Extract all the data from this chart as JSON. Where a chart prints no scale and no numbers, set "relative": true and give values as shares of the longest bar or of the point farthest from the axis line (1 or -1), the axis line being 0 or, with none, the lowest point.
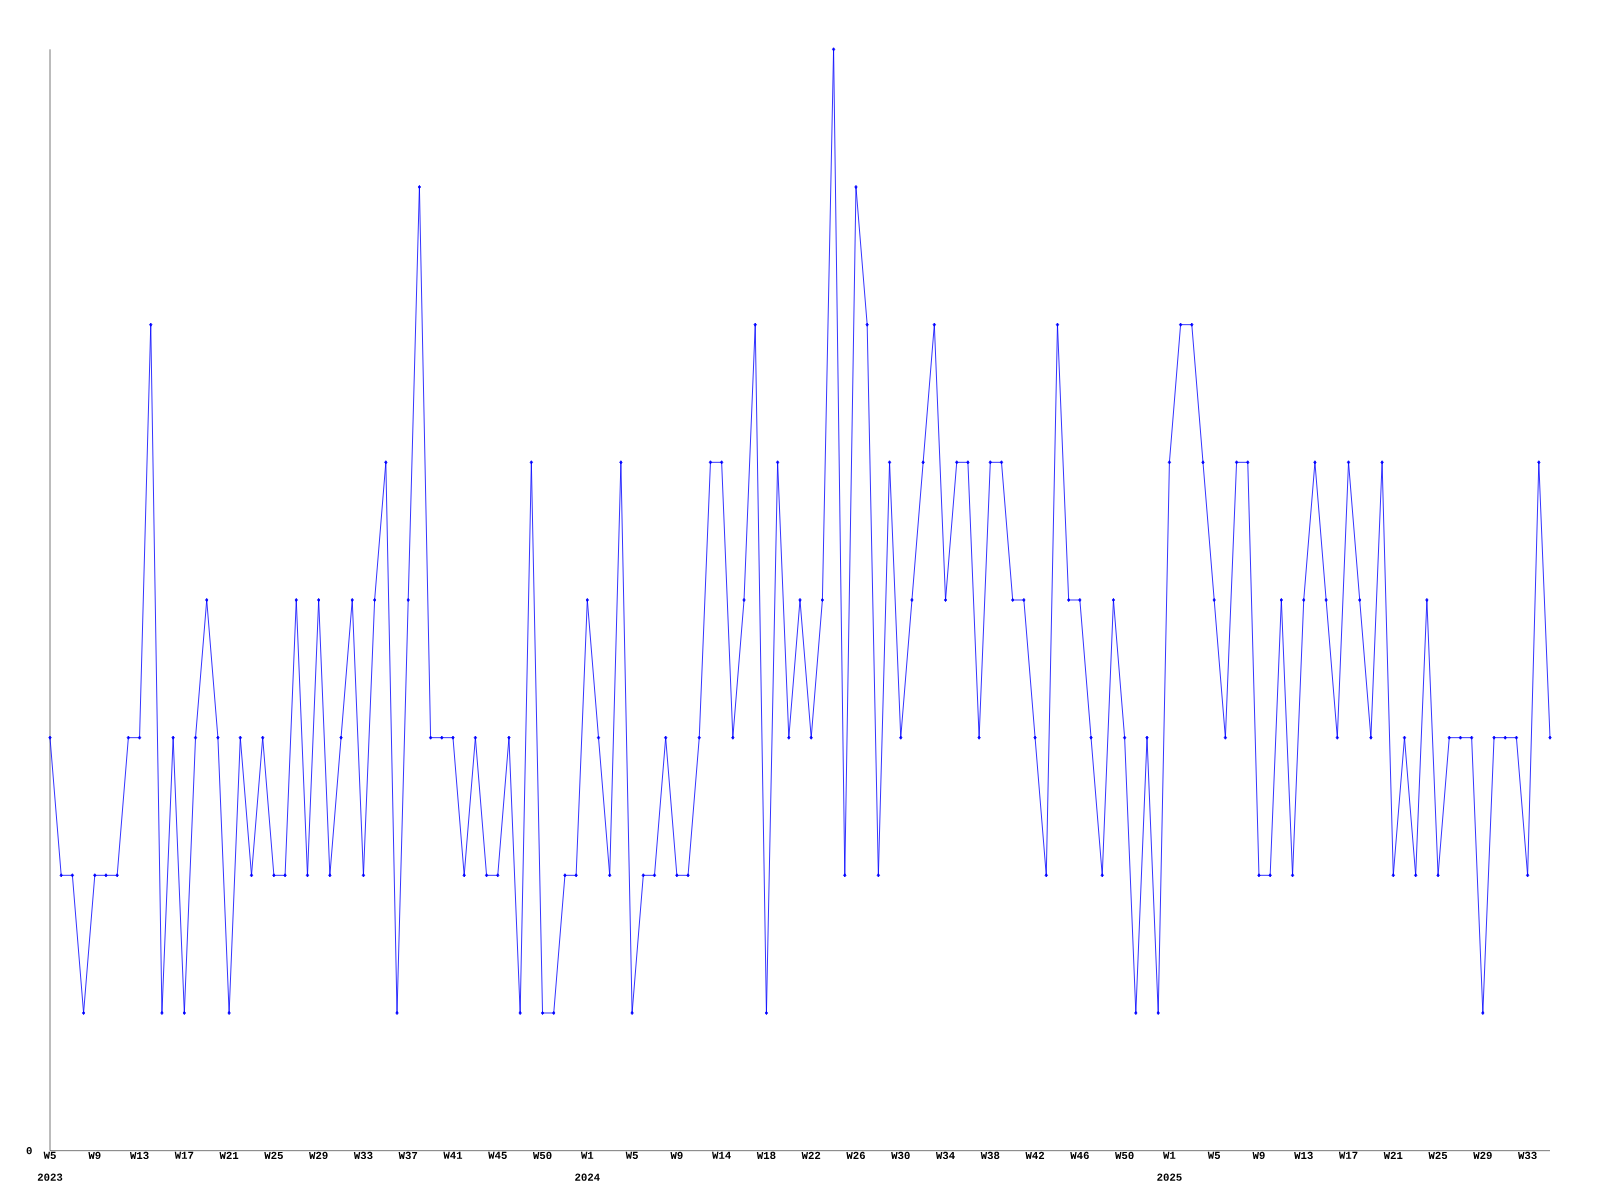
{
  "chart_data": {
    "type": "line",
    "relative": true,
    "color": "#0000ff",
    "marker": "diamond",
    "grid": false,
    "categories": [
      "W5",
      null,
      null,
      null,
      "W9",
      null,
      null,
      null,
      "W13",
      null,
      null,
      null,
      "W17",
      null,
      null,
      null,
      "W21",
      null,
      null,
      null,
      "W25",
      null,
      null,
      null,
      "W29",
      null,
      null,
      null,
      "W33",
      null,
      null,
      null,
      "W37",
      null,
      null,
      null,
      "W41",
      null,
      null,
      null,
      "W45",
      null,
      null,
      null,
      "W50",
      null,
      null,
      null,
      "W1",
      null,
      null,
      null,
      "W5",
      null,
      null,
      null,
      "W9",
      null,
      null,
      null,
      "W14",
      null,
      null,
      null,
      "W18",
      null,
      null,
      null,
      "W22",
      null,
      null,
      null,
      "W26",
      null,
      null,
      null,
      "W30",
      null,
      null,
      null,
      "W34",
      null,
      null,
      null,
      "W38",
      null,
      null,
      null,
      "W42",
      null,
      null,
      null,
      "W46",
      null,
      null,
      null,
      "W50",
      null,
      null,
      null,
      "W1",
      null,
      null,
      null,
      "W5",
      null,
      null,
      null,
      "W9",
      null,
      null,
      null,
      "W13",
      null,
      null,
      null,
      "W17",
      null,
      null,
      null,
      "W21",
      null,
      null,
      null,
      "W25",
      null,
      null,
      null,
      "W29",
      null,
      null,
      null,
      "W33",
      null,
      null
    ],
    "values": [
      0.375,
      0.25,
      0.25,
      0.125,
      0.25,
      0.25,
      0.25,
      0.375,
      0.375,
      0.75,
      0.125,
      0.375,
      0.125,
      0.375,
      0.5,
      0.375,
      0.125,
      0.375,
      0.25,
      0.375,
      0.25,
      0.25,
      0.5,
      0.25,
      0.5,
      0.25,
      0.375,
      0.5,
      0.25,
      0.5,
      0.625,
      0.125,
      0.5,
      0.875,
      0.375,
      0.375,
      0.375,
      0.25,
      0.375,
      0.25,
      0.25,
      0.375,
      0.125,
      0.625,
      0.125,
      0.125,
      0.25,
      0.25,
      0.5,
      0.375,
      0.25,
      0.625,
      0.125,
      0.25,
      0.25,
      0.375,
      0.25,
      0.25,
      0.375,
      0.625,
      0.625,
      0.375,
      0.5,
      0.75,
      0.125,
      0.625,
      0.375,
      0.5,
      0.375,
      0.5,
      1,
      0.25,
      0.875,
      0.75,
      0.25,
      0.625,
      0.375,
      0.5,
      0.625,
      0.75,
      0.5,
      0.625,
      0.625,
      0.375,
      0.625,
      0.625,
      0.5,
      0.5,
      0.375,
      0.25,
      0.75,
      0.5,
      0.5,
      0.375,
      0.25,
      0.5,
      0.375,
      0.125,
      0.375,
      0.125,
      0.625,
      0.75,
      0.75,
      0.625,
      0.5,
      0.375,
      0.625,
      0.625,
      0.25,
      0.25,
      0.5,
      0.25,
      0.5,
      0.625,
      0.5,
      0.375,
      0.625,
      0.5,
      0.375,
      0.625,
      0.25,
      0.375,
      0.25,
      0.5,
      0.25,
      0.375,
      0.375,
      0.375,
      0.125,
      0.375,
      0.375,
      0.375,
      0.25,
      0.625,
      0.375
    ],
    "annotations": [
      "0",
      "2023",
      "2024",
      "2025"
    ]
  }
}
